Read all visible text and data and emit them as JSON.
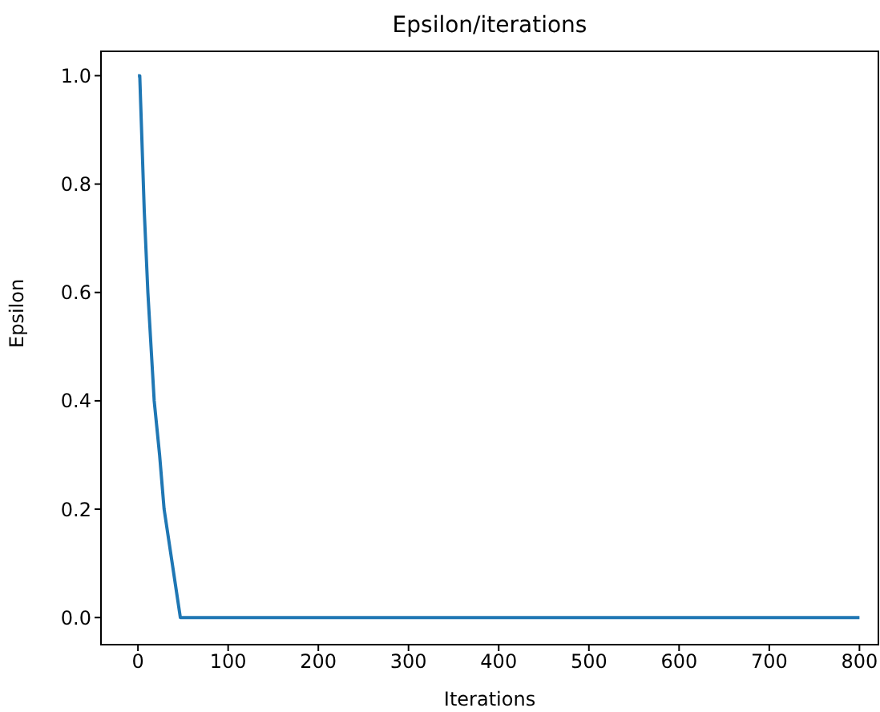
{
  "chart_data": {
    "type": "line",
    "title": "Epsilon/iterations",
    "xlabel": "Iterations",
    "ylabel": "Epsilon",
    "x": [
      0,
      2,
      3,
      5,
      7,
      11,
      18,
      24,
      29,
      38,
      47,
      800
    ],
    "series": [
      {
        "color": "#1f77b4",
        "values": [
          1,
          1,
          0.95,
          0.85,
          0.75,
          0.6,
          0.4,
          0.3,
          0.2,
          0.1,
          0,
          0
        ]
      }
    ],
    "xlim": [
      -41,
      821
    ],
    "xticks": [
      0,
      100,
      200,
      300,
      400,
      500,
      600,
      700,
      800
    ],
    "ylim": [
      -0.05,
      1.045
    ],
    "yticks": [
      {
        "value": 0,
        "label": "0.0"
      },
      {
        "value": 0.2,
        "label": "0.2"
      },
      {
        "value": 0.4,
        "label": "0.4"
      },
      {
        "value": 0.6,
        "label": "0.6"
      },
      {
        "value": 0.8,
        "label": "0.8"
      },
      {
        "value": 1,
        "label": "1.0"
      }
    ],
    "grid": false,
    "legend": false,
    "marker": "none",
    "line_style": "solid"
  }
}
